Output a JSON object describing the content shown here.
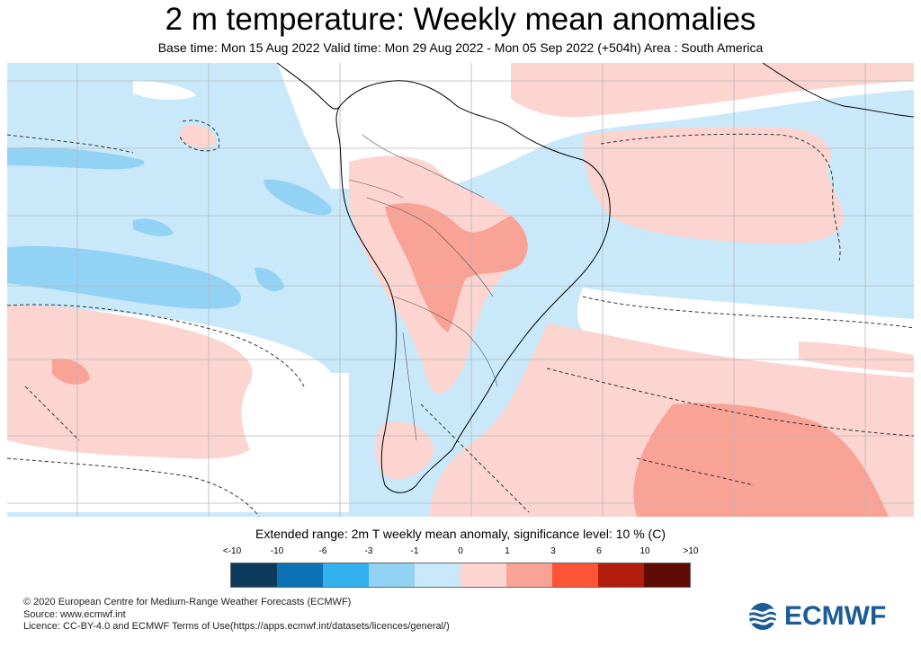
{
  "header": {
    "title": "2 m temperature: Weekly mean anomalies",
    "subtitle": "Base time: Mon 15 Aug 2022 Valid time: Mon 29 Aug 2022 - Mon 05 Sep 2022 (+504h) Area : South America"
  },
  "legend": {
    "title": "Extended range: 2m T weekly mean anomaly, significance level: 10 % (C)",
    "labels": [
      "<-10",
      "-10",
      "-6",
      "-3",
      "-1",
      "0",
      "1",
      "3",
      "6",
      "10",
      ">10"
    ],
    "colors": [
      "#0b3a5c",
      "#0e73b5",
      "#33b0ee",
      "#92d3f5",
      "#c9e9fb",
      "#fcd4d0",
      "#f9a296",
      "#fb5437",
      "#b31d0d",
      "#5e0a05"
    ]
  },
  "footer": {
    "line1": "© 2020 European Centre for Medium-Range Weather Forecasts (ECMWF)",
    "line2": "Source: www.ecmwf.int",
    "line3": "Licence: CC-BY-4.0 and ECMWF Terms of Use(https://apps.ecmwf.int/datasets/licences/general/)"
  },
  "logo": {
    "text": "ECMWF",
    "color": "#1a5c96"
  },
  "map": {
    "area": "South America",
    "land_color": "#ffffff",
    "coast_color": "#000000",
    "grid_color": "#b8b8b8"
  }
}
